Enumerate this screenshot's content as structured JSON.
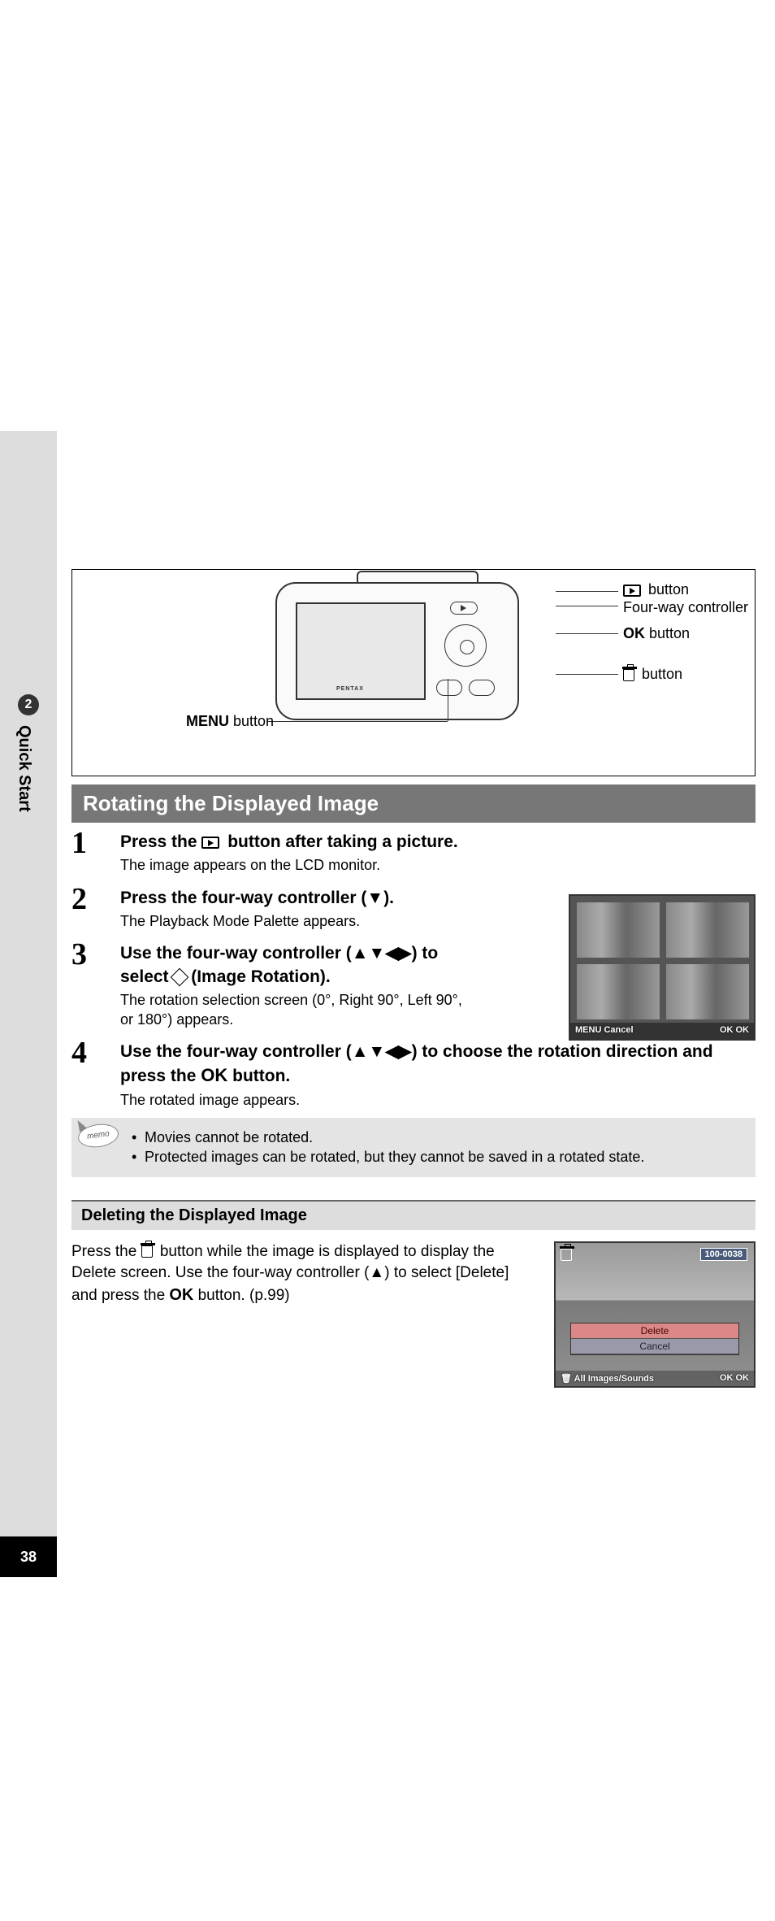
{
  "tab": {
    "num": "2",
    "title": "Quick Start"
  },
  "pageNumber": "38",
  "diagram": {
    "brand": "PENTAX",
    "labels": {
      "play": " button",
      "four": "Four-way controller",
      "ok": " button",
      "okPrefix": "OK",
      "trash": " button",
      "menuPrefix": "MENU",
      "menu": " button"
    }
  },
  "banner": "Rotating the Displayed Image",
  "steps": {
    "s1": {
      "n": "1",
      "head": "Press the ▶ button after taking a picture.",
      "desc": "The image appears on the LCD monitor."
    },
    "s2": {
      "n": "2",
      "head": "Press the four-way controller (▼).",
      "desc": "The Playback Mode Palette appears."
    },
    "s3": {
      "n": "3",
      "headA": "Use the four-way controller (▲▼◀▶) to select ",
      "headB": " (Image Rotation).",
      "desc": "The rotation selection screen (0°, Right 90°, Left 90°, or 180°) appears."
    },
    "s4": {
      "n": "4",
      "headA": "Use the four-way controller (▲▼◀▶) to choose the rotation direction and press the ",
      "headOK": "OK",
      "headB": " button.",
      "desc": "The rotated image appears."
    }
  },
  "rotimg": {
    "cancel": "MENU Cancel",
    "ok": "OK OK"
  },
  "memo": {
    "iconText": "memo",
    "l1": "Movies cannot be rotated.",
    "l2": "Protected images can be rotated, but they cannot be saved in a rotated state."
  },
  "subbanner": "Deleting the Displayed Image",
  "delete": {
    "textA": "Press the ",
    "textB": " button while the image is displayed to display the Delete screen. Use the four-way controller (▲) to select [Delete] and press the ",
    "textOK": "OK",
    "textC": " button. (p.99)"
  },
  "delimg": {
    "fileNo": "100-0038",
    "del": "Delete",
    "can": "Cancel",
    "footL": "🗑 All Images/Sounds",
    "footR": "OK OK"
  }
}
